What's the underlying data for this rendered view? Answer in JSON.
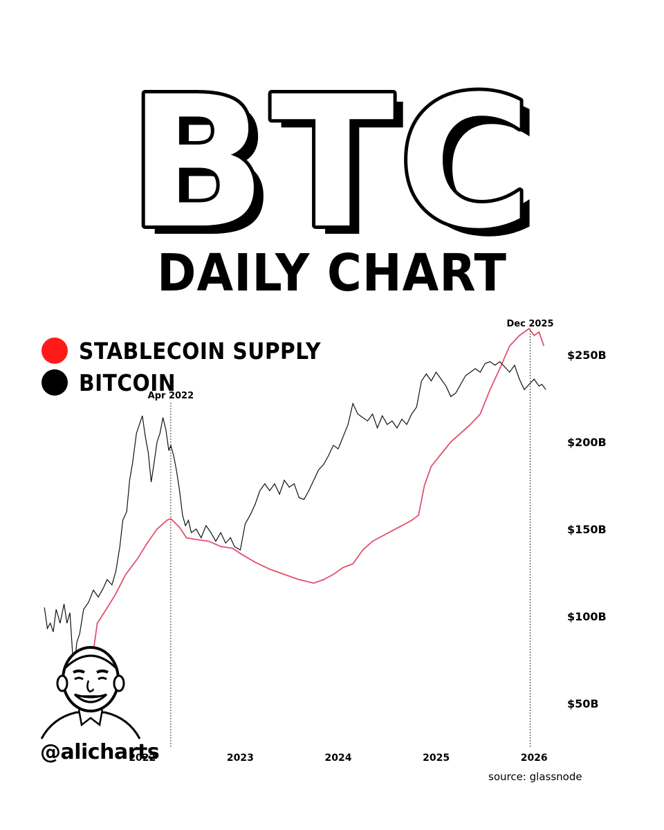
{
  "header": {
    "title": "BTC",
    "subtitle": "DAILY CHART"
  },
  "legend": [
    {
      "label": "STABLECOIN SUPPLY",
      "color": "#ff1a1a"
    },
    {
      "label": "BITCOIN",
      "color": "#000000"
    }
  ],
  "chart_data": {
    "type": "line",
    "legend_placement": "top-left",
    "grid": false,
    "y_axis": {
      "side": "right",
      "tick_labels": [
        "$50B",
        "$100B",
        "$150B",
        "$200B",
        "$250B"
      ],
      "tick_values": [
        50,
        100,
        150,
        200,
        250
      ],
      "range": [
        25,
        267
      ]
    },
    "x_axis": {
      "tick_labels": [
        "2022",
        "2023",
        "2024",
        "2025",
        "2026"
      ],
      "tick_values": [
        2022,
        2023,
        2024,
        2025,
        2026
      ],
      "range": [
        2020.97,
        2026.14
      ]
    },
    "annotations": [
      {
        "label": "Apr 2022",
        "x": 2022.29
      },
      {
        "label": "Dec 2025",
        "x": 2025.96
      }
    ],
    "series": [
      {
        "name": "STABLECOIN SUPPLY",
        "color": "#e0506e",
        "axis": "right",
        "points": [
          [
            2021.3,
            30
          ],
          [
            2021.35,
            36
          ],
          [
            2021.42,
            56
          ],
          [
            2021.5,
            80
          ],
          [
            2021.54,
            96
          ],
          [
            2021.62,
            103
          ],
          [
            2021.72,
            112
          ],
          [
            2021.83,
            124
          ],
          [
            2021.95,
            133
          ],
          [
            2022.05,
            142
          ],
          [
            2022.15,
            150
          ],
          [
            2022.25,
            155
          ],
          [
            2022.29,
            156
          ],
          [
            2022.38,
            151
          ],
          [
            2022.45,
            145
          ],
          [
            2022.55,
            144
          ],
          [
            2022.68,
            143
          ],
          [
            2022.8,
            140
          ],
          [
            2022.92,
            139
          ],
          [
            2023.0,
            136
          ],
          [
            2023.15,
            131
          ],
          [
            2023.3,
            127
          ],
          [
            2023.45,
            124
          ],
          [
            2023.6,
            121
          ],
          [
            2023.75,
            119
          ],
          [
            2023.85,
            121
          ],
          [
            2023.95,
            124
          ],
          [
            2024.05,
            128
          ],
          [
            2024.15,
            130
          ],
          [
            2024.25,
            138
          ],
          [
            2024.35,
            143
          ],
          [
            2024.45,
            146
          ],
          [
            2024.55,
            149
          ],
          [
            2024.65,
            152
          ],
          [
            2024.75,
            155
          ],
          [
            2024.82,
            158
          ],
          [
            2024.88,
            175
          ],
          [
            2024.95,
            186
          ],
          [
            2025.05,
            193
          ],
          [
            2025.15,
            200
          ],
          [
            2025.25,
            205
          ],
          [
            2025.35,
            210
          ],
          [
            2025.45,
            216
          ],
          [
            2025.55,
            230
          ],
          [
            2025.65,
            242
          ],
          [
            2025.75,
            255
          ],
          [
            2025.85,
            261
          ],
          [
            2025.9,
            263
          ],
          [
            2025.95,
            265
          ],
          [
            2026.0,
            261
          ],
          [
            2026.05,
            263
          ],
          [
            2026.1,
            255
          ]
        ]
      },
      {
        "name": "BITCOIN",
        "color": "#111111",
        "axis": "right",
        "points": [
          [
            2021.0,
            105
          ],
          [
            2021.03,
            93
          ],
          [
            2021.06,
            96
          ],
          [
            2021.09,
            91
          ],
          [
            2021.12,
            104
          ],
          [
            2021.16,
            96
          ],
          [
            2021.2,
            107
          ],
          [
            2021.23,
            96
          ],
          [
            2021.26,
            102
          ],
          [
            2021.3,
            68
          ],
          [
            2021.33,
            85
          ],
          [
            2021.36,
            90
          ],
          [
            2021.4,
            104
          ],
          [
            2021.45,
            108
          ],
          [
            2021.5,
            115
          ],
          [
            2021.55,
            111
          ],
          [
            2021.6,
            116
          ],
          [
            2021.64,
            121
          ],
          [
            2021.69,
            118
          ],
          [
            2021.73,
            126
          ],
          [
            2021.77,
            140
          ],
          [
            2021.8,
            155
          ],
          [
            2021.84,
            160
          ],
          [
            2021.87,
            178
          ],
          [
            2021.9,
            188
          ],
          [
            2021.94,
            205
          ],
          [
            2021.97,
            210
          ],
          [
            2022.0,
            215
          ],
          [
            2022.03,
            203
          ],
          [
            2022.06,
            194
          ],
          [
            2022.09,
            177
          ],
          [
            2022.12,
            188
          ],
          [
            2022.15,
            200
          ],
          [
            2022.18,
            205
          ],
          [
            2022.21,
            214
          ],
          [
            2022.24,
            207
          ],
          [
            2022.27,
            195
          ],
          [
            2022.29,
            198
          ],
          [
            2022.32,
            192
          ],
          [
            2022.35,
            183
          ],
          [
            2022.38,
            172
          ],
          [
            2022.41,
            158
          ],
          [
            2022.44,
            152
          ],
          [
            2022.47,
            155
          ],
          [
            2022.5,
            148
          ],
          [
            2022.55,
            150
          ],
          [
            2022.6,
            145
          ],
          [
            2022.65,
            152
          ],
          [
            2022.7,
            148
          ],
          [
            2022.75,
            143
          ],
          [
            2022.8,
            148
          ],
          [
            2022.85,
            142
          ],
          [
            2022.9,
            145
          ],
          [
            2022.94,
            140
          ],
          [
            2023.0,
            138
          ],
          [
            2023.05,
            153
          ],
          [
            2023.1,
            158
          ],
          [
            2023.15,
            164
          ],
          [
            2023.2,
            172
          ],
          [
            2023.25,
            176
          ],
          [
            2023.3,
            172
          ],
          [
            2023.35,
            176
          ],
          [
            2023.4,
            170
          ],
          [
            2023.45,
            178
          ],
          [
            2023.5,
            174
          ],
          [
            2023.55,
            176
          ],
          [
            2023.6,
            168
          ],
          [
            2023.65,
            167
          ],
          [
            2023.7,
            172
          ],
          [
            2023.75,
            178
          ],
          [
            2023.8,
            184
          ],
          [
            2023.85,
            187
          ],
          [
            2023.9,
            192
          ],
          [
            2023.95,
            198
          ],
          [
            2024.0,
            196
          ],
          [
            2024.05,
            203
          ],
          [
            2024.1,
            210
          ],
          [
            2024.15,
            222
          ],
          [
            2024.2,
            216
          ],
          [
            2024.25,
            214
          ],
          [
            2024.3,
            212
          ],
          [
            2024.35,
            216
          ],
          [
            2024.4,
            208
          ],
          [
            2024.45,
            215
          ],
          [
            2024.5,
            210
          ],
          [
            2024.55,
            212
          ],
          [
            2024.6,
            208
          ],
          [
            2024.65,
            213
          ],
          [
            2024.7,
            210
          ],
          [
            2024.75,
            216
          ],
          [
            2024.8,
            220
          ],
          [
            2024.85,
            235
          ],
          [
            2024.9,
            239
          ],
          [
            2024.95,
            235
          ],
          [
            2025.0,
            240
          ],
          [
            2025.05,
            236
          ],
          [
            2025.1,
            232
          ],
          [
            2025.15,
            226
          ],
          [
            2025.2,
            228
          ],
          [
            2025.25,
            233
          ],
          [
            2025.3,
            238
          ],
          [
            2025.35,
            240
          ],
          [
            2025.4,
            242
          ],
          [
            2025.45,
            240
          ],
          [
            2025.5,
            245
          ],
          [
            2025.55,
            246
          ],
          [
            2025.6,
            244
          ],
          [
            2025.65,
            246
          ],
          [
            2025.7,
            243
          ],
          [
            2025.75,
            240
          ],
          [
            2025.8,
            244
          ],
          [
            2025.85,
            236
          ],
          [
            2025.9,
            230
          ],
          [
            2025.95,
            233
          ],
          [
            2026.0,
            236
          ],
          [
            2026.05,
            232
          ],
          [
            2026.08,
            233
          ],
          [
            2026.12,
            230
          ]
        ]
      }
    ]
  },
  "branding": {
    "handle": "@alicharts",
    "source": "source: glassnode",
    "avatar_icon": "cartoon-portrait-icon"
  }
}
